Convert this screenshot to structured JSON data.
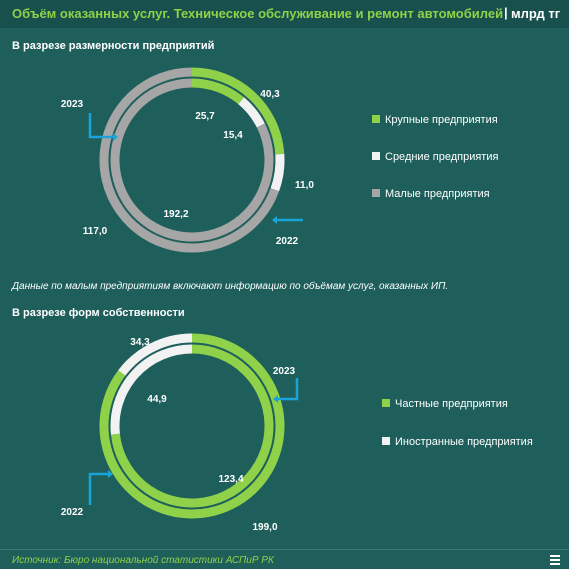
{
  "header": {
    "title": "Объём оказанных услуг. Техническое обслуживание и ремонт автомобилей",
    "separator": "|",
    "unit": "млрд тг"
  },
  "section1": {
    "title": "В разрезе размерности предприятий"
  },
  "section2": {
    "title": "В разрезе форм собственности"
  },
  "note": "Данные по малым предприятиям включают информацию по объёмам услуг, оказанных ИП.",
  "source": "Источник: Бюро национальной статистики АСПиР РК",
  "colors": {
    "green": "#8fd24a",
    "white": "#f2f2f2",
    "gray": "#a6a6a6",
    "accent": "#1aa3d9"
  },
  "chart_data": [
    {
      "type": "pie",
      "subtype": "double-donut",
      "series": [
        {
          "name": "2023",
          "ring": "outer",
          "values": [
            40.3,
            11.0,
            117.0
          ]
        },
        {
          "name": "2022",
          "ring": "inner",
          "values": [
            25.7,
            15.4,
            192.2
          ]
        }
      ],
      "categories": [
        "Крупные предприятия",
        "Средние предприятия",
        "Малые предприятия"
      ],
      "labels": {
        "outer": [
          "40,3",
          "11,0",
          "117,0"
        ],
        "inner": [
          "25,7",
          "15,4",
          "192,2"
        ]
      },
      "colors": [
        "#8fd24a",
        "#f2f2f2",
        "#a6a6a6"
      ],
      "legend": [
        "Крупные предприятия",
        "Средние предприятия",
        "Малые предприятия"
      ],
      "legend_position": "right"
    },
    {
      "type": "pie",
      "subtype": "double-donut",
      "series": [
        {
          "name": "2023",
          "ring": "outer",
          "values": [
            199.0,
            34.3
          ]
        },
        {
          "name": "2022",
          "ring": "inner",
          "values": [
            123.4,
            44.9
          ]
        }
      ],
      "categories": [
        "Частные предприятия",
        "Иностранные предприятия"
      ],
      "labels": {
        "outer": [
          "199,0",
          "34,3"
        ],
        "inner": [
          "123,4",
          "44,9"
        ]
      },
      "colors": [
        "#8fd24a",
        "#f2f2f2"
      ],
      "legend": [
        "Частные предприятия",
        "Иностранные предприятия"
      ],
      "legend_position": "right"
    }
  ]
}
